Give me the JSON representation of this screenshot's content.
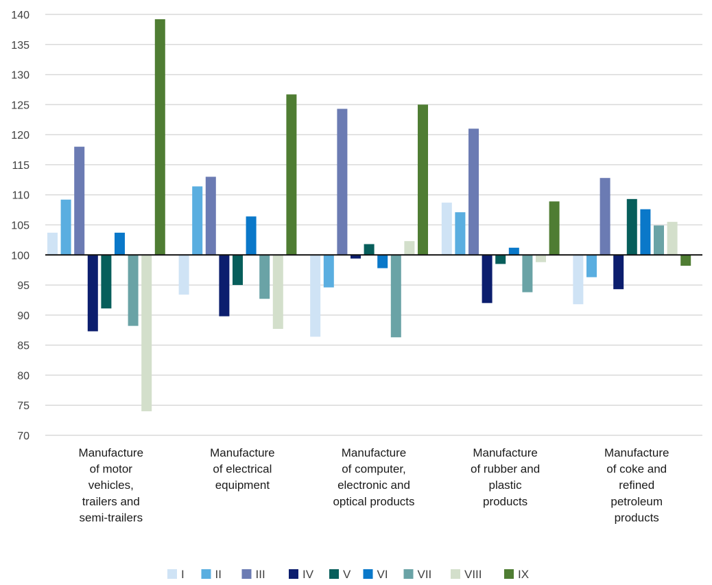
{
  "chart_data": {
    "type": "bar",
    "title": "",
    "xlabel": "",
    "ylabel": "",
    "ylim": [
      70,
      140
    ],
    "ytick_step": 5,
    "baseline": 100,
    "grid": true,
    "legend_position": "bottom",
    "categories": [
      [
        "Manufacture",
        "of motor",
        "vehicles,",
        "trailers and",
        "semi-trailers"
      ],
      [
        "Manufacture",
        "of electrical",
        "equipment"
      ],
      [
        "Manufacture",
        "of computer,",
        "electronic and",
        "optical products"
      ],
      [
        "Manufacture",
        "of rubber and",
        "plastic",
        "products"
      ],
      [
        "Manufacture",
        "of coke and",
        "refined",
        "petroleum",
        "products"
      ]
    ],
    "series": [
      {
        "name": "I",
        "color": "#cfe3f5",
        "values": [
          103.7,
          93.4,
          86.4,
          108.7,
          91.8
        ]
      },
      {
        "name": "II",
        "color": "#5aaee0",
        "values": [
          109.2,
          111.4,
          94.6,
          107.1,
          96.3
        ]
      },
      {
        "name": "III",
        "color": "#6b7bb3",
        "values": [
          118.0,
          113.0,
          124.3,
          121.0,
          112.8
        ]
      },
      {
        "name": "IV",
        "color": "#0c1e6e",
        "values": [
          87.3,
          89.8,
          99.4,
          92.0,
          94.3
        ]
      },
      {
        "name": "V",
        "color": "#075e5b",
        "values": [
          91.1,
          95.0,
          101.8,
          98.5,
          109.3
        ]
      },
      {
        "name": "VI",
        "color": "#0a78c9",
        "values": [
          103.7,
          106.4,
          97.8,
          101.2,
          107.6
        ]
      },
      {
        "name": "VII",
        "color": "#6aa3a6",
        "values": [
          88.2,
          92.7,
          86.3,
          93.8,
          104.9
        ]
      },
      {
        "name": "VIII",
        "color": "#d3dfcb",
        "values": [
          74.0,
          87.7,
          102.3,
          98.8,
          105.5
        ]
      },
      {
        "name": "IX",
        "color": "#4f7d33",
        "values": [
          139.2,
          126.7,
          125.0,
          108.9,
          98.2
        ]
      }
    ]
  }
}
